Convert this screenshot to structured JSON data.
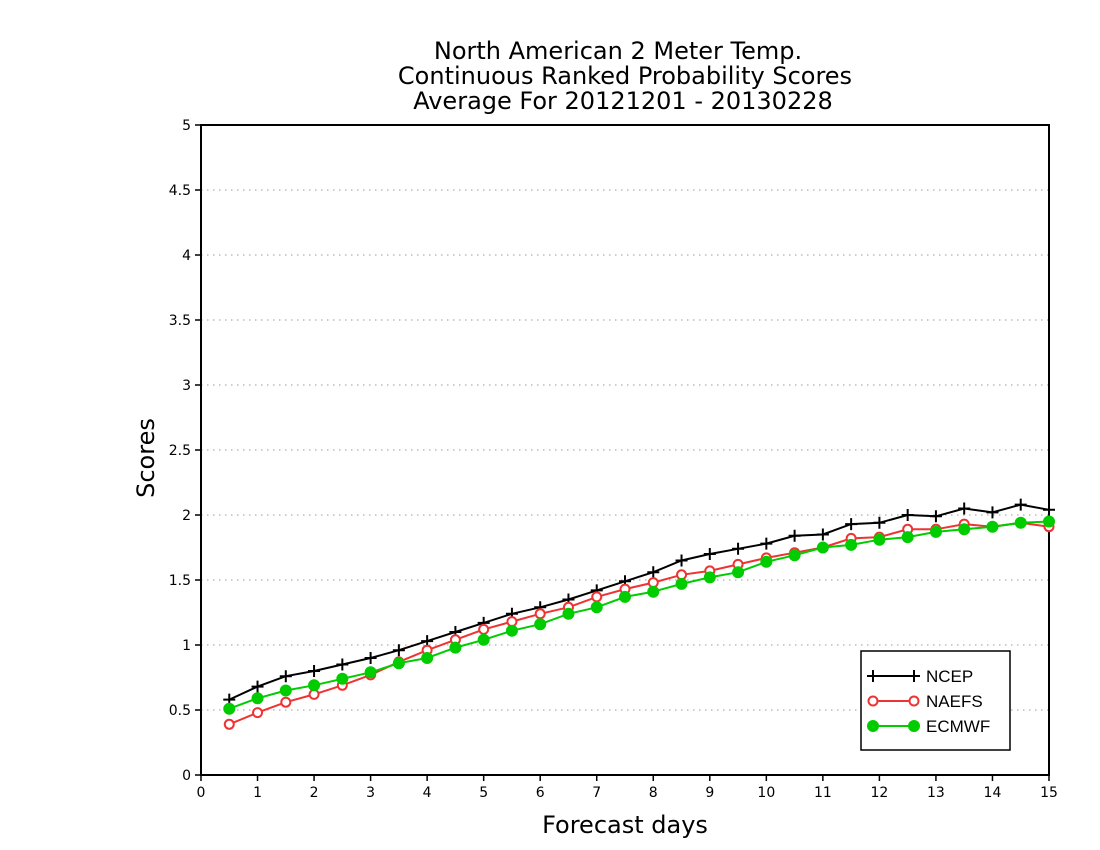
{
  "chart_data": {
    "type": "line",
    "title_lines": [
      "North American 2 Meter Temp.",
      "Continuous Ranked Probability Scores",
      "Average For 20121201 - 20130228"
    ],
    "xlabel": "Forecast days",
    "ylabel": "Scores",
    "xlim": [
      0,
      15
    ],
    "ylim": [
      0,
      5
    ],
    "x_ticks": [
      "0",
      "1",
      "2",
      "3",
      "4",
      "5",
      "6",
      "7",
      "8",
      "9",
      "10",
      "11",
      "12",
      "13",
      "14",
      "15"
    ],
    "y_ticks": [
      "0",
      "0.5",
      "1",
      "1.5",
      "2",
      "2.5",
      "3",
      "3.5",
      "4",
      "4.5",
      "5"
    ],
    "grid": "horizontal dotted",
    "legend_position": "bottom-right",
    "x": [
      0.5,
      1,
      1.5,
      2,
      2.5,
      3,
      3.5,
      4,
      4.5,
      5,
      5.5,
      6,
      6.5,
      7,
      7.5,
      8,
      8.5,
      9,
      9.5,
      10,
      10.5,
      11,
      11.5,
      12,
      12.5,
      13,
      13.5,
      14,
      14.5,
      15
    ],
    "series": [
      {
        "name": "NCEP",
        "color": "#000000",
        "marker": "plus",
        "values": [
          0.58,
          0.68,
          0.76,
          0.8,
          0.85,
          0.9,
          0.96,
          1.03,
          1.1,
          1.17,
          1.24,
          1.29,
          1.35,
          1.42,
          1.49,
          1.56,
          1.65,
          1.7,
          1.74,
          1.78,
          1.84,
          1.85,
          1.93,
          1.94,
          2.0,
          1.99,
          2.05,
          2.02,
          2.08,
          2.04
        ]
      },
      {
        "name": "NAEFS",
        "color": "#ee3333",
        "marker": "open-circle",
        "values": [
          0.39,
          0.48,
          0.56,
          0.62,
          0.69,
          0.77,
          0.87,
          0.96,
          1.04,
          1.12,
          1.18,
          1.24,
          1.29,
          1.37,
          1.43,
          1.48,
          1.54,
          1.57,
          1.62,
          1.67,
          1.71,
          1.75,
          1.82,
          1.83,
          1.89,
          1.89,
          1.93,
          1.91,
          1.94,
          1.91
        ]
      },
      {
        "name": "ECMWF",
        "color": "#00cc00",
        "marker": "filled-circle",
        "values": [
          0.51,
          0.59,
          0.65,
          0.69,
          0.74,
          0.79,
          0.86,
          0.9,
          0.98,
          1.04,
          1.11,
          1.16,
          1.24,
          1.29,
          1.37,
          1.41,
          1.47,
          1.52,
          1.56,
          1.64,
          1.69,
          1.75,
          1.77,
          1.81,
          1.83,
          1.87,
          1.89,
          1.91,
          1.94,
          1.95
        ]
      }
    ]
  }
}
